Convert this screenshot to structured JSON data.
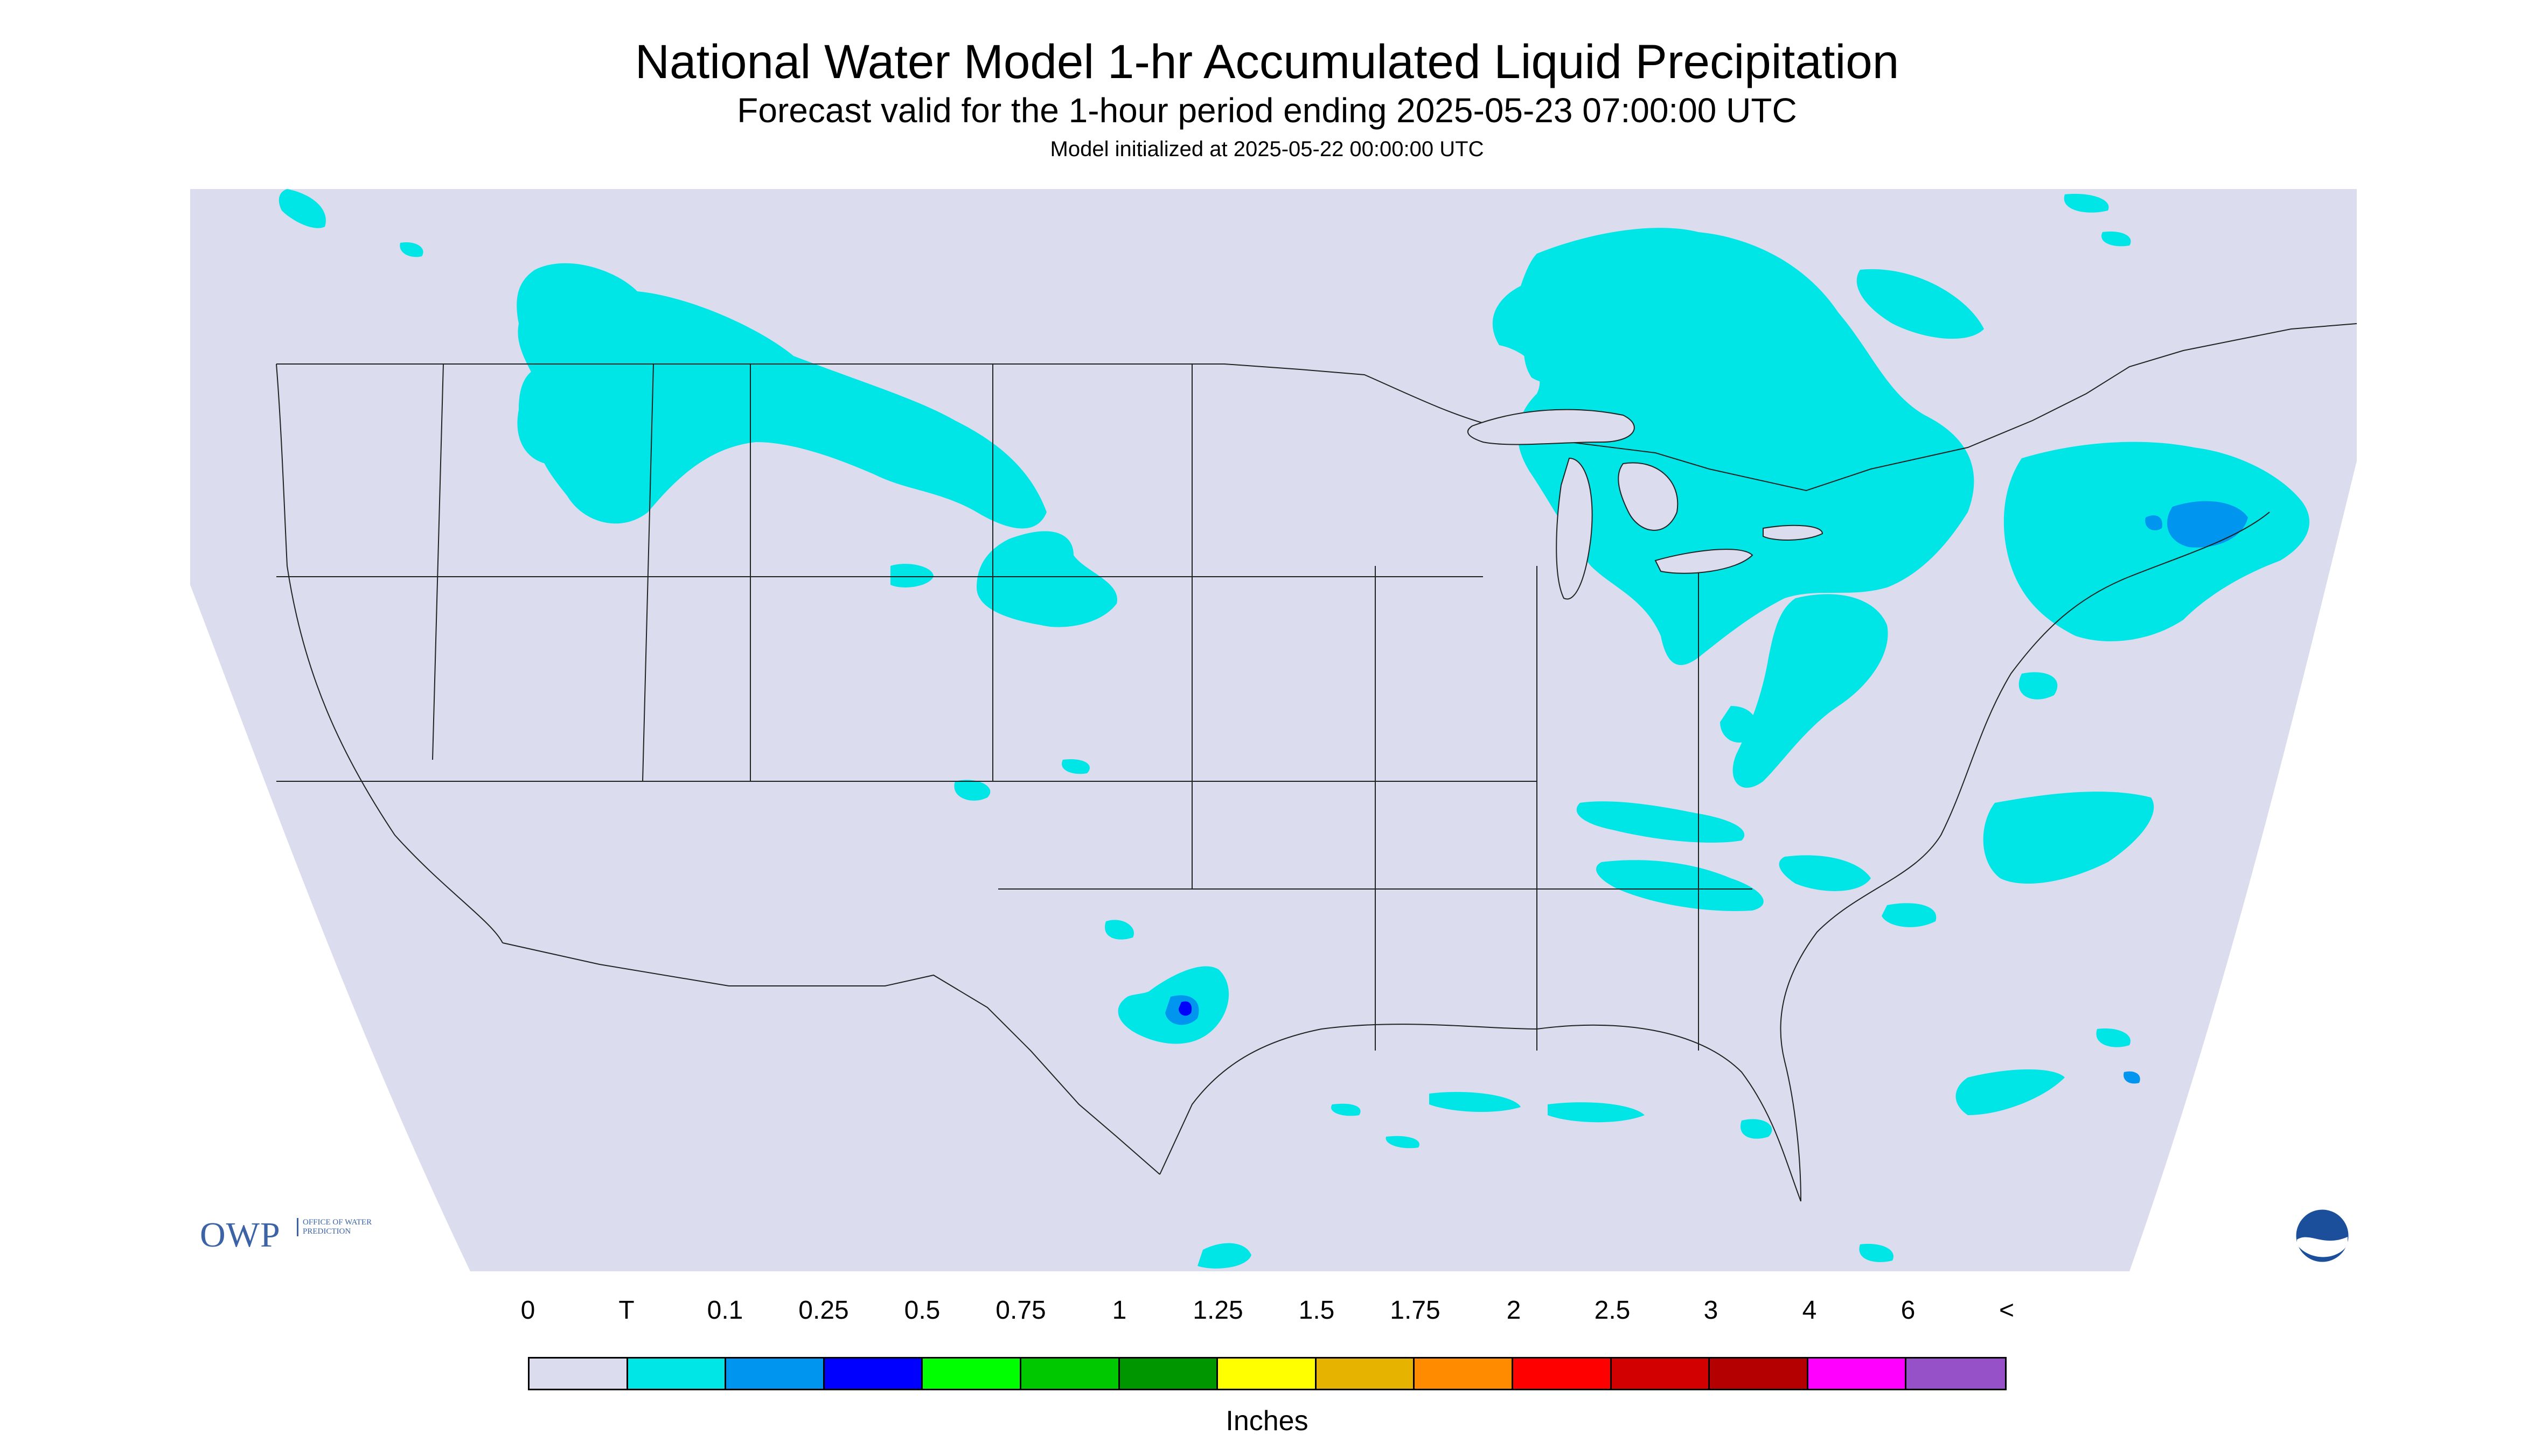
{
  "header": {
    "title": "National Water Model 1-hr Accumulated Liquid Precipitation",
    "subtitle": "Forecast valid for the 1-hour period ending 2025-05-23 07:00:00 UTC",
    "init": "Model initialized at 2025-05-22 00:00:00 UTC"
  },
  "logos": {
    "owp_short": "OWP",
    "owp_long": "OFFICE OF WATER PREDICTION",
    "noaa": "NOAA"
  },
  "legend": {
    "labels": [
      "0",
      "T",
      "0.1",
      "0.25",
      "0.5",
      "0.75",
      "1",
      "1.25",
      "1.5",
      "1.75",
      "2",
      "2.5",
      "3",
      "4",
      "6",
      "<"
    ],
    "colors": [
      "#dcdcef",
      "#00e6e6",
      "#0096f0",
      "#0000ff",
      "#00ff00",
      "#00c800",
      "#009600",
      "#ffff00",
      "#e6b400",
      "#ff8c00",
      "#ff0000",
      "#d20000",
      "#b40000",
      "#ff00ff",
      "#9650c8"
    ],
    "units": "Inches"
  },
  "colors": {
    "domain_fill": "#dcdcef",
    "outside_fill": "#ffffff",
    "trace": "#00e6e6",
    "light": "#0096f0",
    "moderate": "#0000ff",
    "borders": "#222222"
  }
}
